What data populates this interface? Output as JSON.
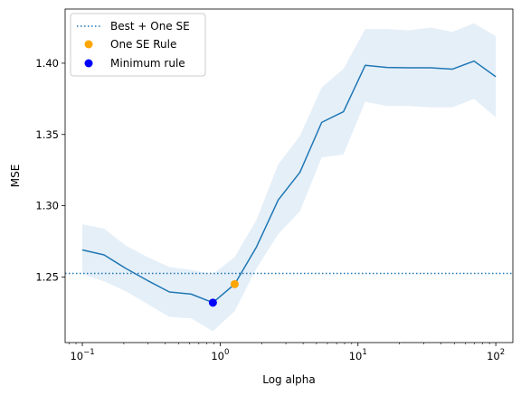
{
  "chart_data": {
    "type": "line",
    "title": "",
    "xlabel": "Log alpha",
    "ylabel": "MSE",
    "xscale": "log",
    "xlim": [
      0.075,
      133
    ],
    "ylim": [
      1.204,
      1.438
    ],
    "x_ticks": [
      {
        "value": 0.1,
        "base": "10",
        "exp": "−1"
      },
      {
        "value": 1,
        "base": "10",
        "exp": "0"
      },
      {
        "value": 10,
        "base": "10",
        "exp": "1"
      },
      {
        "value": 100,
        "base": "10",
        "exp": "2"
      }
    ],
    "y_ticks": [
      {
        "value": 1.25,
        "label": "1.25"
      },
      {
        "value": 1.3,
        "label": "1.30"
      },
      {
        "value": 1.35,
        "label": "1.35"
      },
      {
        "value": 1.4,
        "label": "1.40"
      }
    ],
    "grid": false,
    "legend_position": "top-left",
    "x": [
      0.1,
      0.1438,
      0.2069,
      0.2976,
      0.4281,
      0.6158,
      0.8859,
      1.2743,
      1.833,
      2.6367,
      3.7927,
      5.4556,
      7.8476,
      11.2884,
      16.2378,
      23.3572,
      33.5982,
      48.3293,
      69.5193,
      100.0
    ],
    "series": [
      {
        "name": "",
        "color": "#1f77b4",
        "values": [
          1.269,
          1.2655,
          1.256,
          1.2475,
          1.2395,
          1.238,
          1.232,
          1.245,
          1.271,
          1.304,
          1.3235,
          1.3585,
          1.366,
          1.3985,
          1.397,
          1.3968,
          1.3968,
          1.3958,
          1.4015,
          1.3905
        ],
        "lower": [
          1.252,
          1.247,
          1.24,
          1.231,
          1.222,
          1.221,
          1.212,
          1.226,
          1.256,
          1.28,
          1.296,
          1.334,
          1.336,
          1.373,
          1.37,
          1.37,
          1.369,
          1.369,
          1.375,
          1.362
        ],
        "upper": [
          1.287,
          1.284,
          1.272,
          1.264,
          1.257,
          1.255,
          1.252,
          1.264,
          1.29,
          1.329,
          1.349,
          1.383,
          1.396,
          1.424,
          1.424,
          1.423,
          1.425,
          1.422,
          1.428,
          1.419
        ]
      }
    ],
    "reference_line": {
      "name": "Best + One SE",
      "y": 1.2525,
      "color": "#1f77b4",
      "style": "dotted"
    },
    "points": [
      {
        "name": "One SE Rule",
        "x": 1.2743,
        "y": 1.245,
        "color": "#ffa500"
      },
      {
        "name": "Minimum rule",
        "x": 0.8859,
        "y": 1.232,
        "color": "#0000ff"
      }
    ],
    "band_color": "#c6dbef"
  }
}
